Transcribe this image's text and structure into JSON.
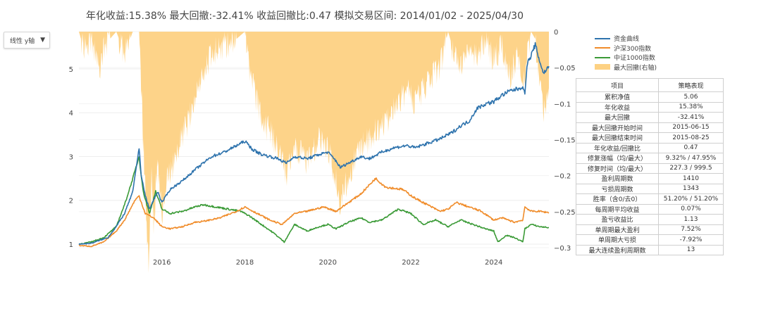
{
  "title": "年化收益:15.38%  最大回撤:-32.41%  收益回撤比:0.47  模拟交易区间: 2014/01/02 - 2025/04/30",
  "scale_dropdown": {
    "label": "线性 y轴",
    "arrow": "▼"
  },
  "colors": {
    "equity": "#2e73ad",
    "hs300": "#f08c2a",
    "zz1000": "#3a9a36",
    "drawdown": "#fdd183"
  },
  "legend": [
    "资金曲线",
    "沪深300指数",
    "中证1000指数",
    "最大回撤(右轴)"
  ],
  "stats_table": {
    "header": [
      "项目",
      "策略表现"
    ],
    "rows": [
      [
        "累积净值",
        "5.06"
      ],
      [
        "年化收益",
        "15.38%"
      ],
      [
        "最大回撤",
        "-32.41%"
      ],
      [
        "最大回撤开始时间",
        "2015-06-15"
      ],
      [
        "最大回撤结束时间",
        "2015-08-25"
      ],
      [
        "年化收益/回撤比",
        "0.47"
      ],
      [
        "修复涨幅（均/最大）",
        "9.32% / 47.95%"
      ],
      [
        "修复时间（均/最大）",
        "227.3 / 999.5"
      ],
      [
        "盈利周期数",
        "1410"
      ],
      [
        "亏损周期数",
        "1343"
      ],
      [
        "胜率（含0/去0）",
        "51.20% / 51.20%"
      ],
      [
        "每周期平均收益",
        "0.07%"
      ],
      [
        "盈亏收益比",
        "1.13"
      ],
      [
        "单周期最大盈利",
        "7.52%"
      ],
      [
        "单周期大亏损",
        "-7.92%"
      ],
      [
        "最大连续盈利周期数",
        "13"
      ]
    ]
  },
  "chart_data": {
    "type": "line",
    "x_range": [
      2014.0,
      2025.33
    ],
    "x_ticks": [
      2016,
      2018,
      2020,
      2022,
      2024
    ],
    "y_left": {
      "range": [
        0.92,
        5.85
      ],
      "ticks": [
        1,
        2,
        3,
        4,
        5
      ]
    },
    "y_right": {
      "range": [
        -0.3,
        0.0
      ],
      "ticks": [
        0,
        -0.05,
        -0.1,
        -0.15,
        -0.2,
        -0.25,
        -0.3
      ],
      "tick_labels": [
        "0",
        "−0.05",
        "−0.1",
        "−0.15",
        "−0.2",
        "−0.25",
        "−0.3"
      ]
    },
    "series": [
      {
        "name": "资金曲线",
        "axis": "left",
        "points": [
          [
            2014.0,
            1.0
          ],
          [
            2014.3,
            1.02
          ],
          [
            2014.7,
            1.15
          ],
          [
            2014.9,
            1.4
          ],
          [
            2015.1,
            1.7
          ],
          [
            2015.3,
            2.2
          ],
          [
            2015.45,
            3.2
          ],
          [
            2015.5,
            2.6
          ],
          [
            2015.6,
            2.1
          ],
          [
            2015.7,
            1.8
          ],
          [
            2015.9,
            2.2
          ],
          [
            2016.0,
            1.95
          ],
          [
            2016.2,
            2.25
          ],
          [
            2016.5,
            2.45
          ],
          [
            2016.8,
            2.7
          ],
          [
            2017.0,
            2.85
          ],
          [
            2017.2,
            3.0
          ],
          [
            2017.5,
            3.1
          ],
          [
            2017.8,
            3.25
          ],
          [
            2018.0,
            3.35
          ],
          [
            2018.2,
            3.15
          ],
          [
            2018.4,
            3.05
          ],
          [
            2018.6,
            3.0
          ],
          [
            2018.8,
            2.95
          ],
          [
            2019.0,
            2.85
          ],
          [
            2019.2,
            3.0
          ],
          [
            2019.5,
            2.95
          ],
          [
            2019.8,
            3.05
          ],
          [
            2020.0,
            3.1
          ],
          [
            2020.2,
            2.9
          ],
          [
            2020.3,
            2.75
          ],
          [
            2020.5,
            2.85
          ],
          [
            2020.8,
            3.0
          ],
          [
            2021.0,
            2.95
          ],
          [
            2021.3,
            3.1
          ],
          [
            2021.6,
            3.2
          ],
          [
            2021.9,
            3.25
          ],
          [
            2022.1,
            3.2
          ],
          [
            2022.4,
            3.3
          ],
          [
            2022.7,
            3.4
          ],
          [
            2023.0,
            3.55
          ],
          [
            2023.2,
            3.7
          ],
          [
            2023.4,
            3.8
          ],
          [
            2023.6,
            4.1
          ],
          [
            2023.8,
            4.2
          ],
          [
            2024.0,
            4.25
          ],
          [
            2024.2,
            4.4
          ],
          [
            2024.4,
            4.5
          ],
          [
            2024.6,
            4.55
          ],
          [
            2024.7,
            4.6
          ],
          [
            2024.75,
            4.4
          ],
          [
            2024.8,
            5.1
          ],
          [
            2024.9,
            5.3
          ],
          [
            2025.0,
            5.55
          ],
          [
            2025.1,
            5.2
          ],
          [
            2025.2,
            4.9
          ],
          [
            2025.33,
            5.06
          ]
        ]
      },
      {
        "name": "沪深300指数",
        "axis": "left",
        "points": [
          [
            2014.0,
            0.97
          ],
          [
            2014.3,
            0.95
          ],
          [
            2014.6,
            1.05
          ],
          [
            2014.9,
            1.3
          ],
          [
            2015.1,
            1.55
          ],
          [
            2015.35,
            2.0
          ],
          [
            2015.45,
            2.1
          ],
          [
            2015.6,
            1.7
          ],
          [
            2015.8,
            1.6
          ],
          [
            2016.0,
            1.4
          ],
          [
            2016.2,
            1.35
          ],
          [
            2016.5,
            1.4
          ],
          [
            2016.8,
            1.5
          ],
          [
            2017.0,
            1.52
          ],
          [
            2017.4,
            1.6
          ],
          [
            2017.8,
            1.75
          ],
          [
            2018.0,
            1.85
          ],
          [
            2018.3,
            1.7
          ],
          [
            2018.6,
            1.55
          ],
          [
            2018.9,
            1.45
          ],
          [
            2019.2,
            1.7
          ],
          [
            2019.5,
            1.75
          ],
          [
            2019.9,
            1.85
          ],
          [
            2020.2,
            1.75
          ],
          [
            2020.5,
            1.95
          ],
          [
            2020.8,
            2.15
          ],
          [
            2021.0,
            2.35
          ],
          [
            2021.15,
            2.5
          ],
          [
            2021.4,
            2.3
          ],
          [
            2021.8,
            2.25
          ],
          [
            2022.1,
            2.05
          ],
          [
            2022.4,
            1.9
          ],
          [
            2022.7,
            1.75
          ],
          [
            2022.9,
            1.8
          ],
          [
            2023.1,
            1.95
          ],
          [
            2023.4,
            1.85
          ],
          [
            2023.7,
            1.75
          ],
          [
            2024.0,
            1.55
          ],
          [
            2024.2,
            1.6
          ],
          [
            2024.5,
            1.5
          ],
          [
            2024.7,
            1.55
          ],
          [
            2024.75,
            1.85
          ],
          [
            2024.9,
            1.75
          ],
          [
            2025.1,
            1.75
          ],
          [
            2025.33,
            1.72
          ]
        ]
      },
      {
        "name": "中证1000指数",
        "axis": "left",
        "points": [
          [
            2014.0,
            1.0
          ],
          [
            2014.3,
            1.05
          ],
          [
            2014.6,
            1.15
          ],
          [
            2014.9,
            1.4
          ],
          [
            2015.1,
            1.9
          ],
          [
            2015.3,
            2.5
          ],
          [
            2015.45,
            3.0
          ],
          [
            2015.55,
            2.2
          ],
          [
            2015.7,
            1.7
          ],
          [
            2015.85,
            2.2
          ],
          [
            2016.0,
            1.8
          ],
          [
            2016.2,
            1.7
          ],
          [
            2016.5,
            1.75
          ],
          [
            2016.8,
            1.85
          ],
          [
            2017.0,
            1.9
          ],
          [
            2017.3,
            1.85
          ],
          [
            2017.6,
            1.8
          ],
          [
            2017.9,
            1.75
          ],
          [
            2018.1,
            1.65
          ],
          [
            2018.4,
            1.45
          ],
          [
            2018.7,
            1.25
          ],
          [
            2018.95,
            1.05
          ],
          [
            2019.2,
            1.45
          ],
          [
            2019.5,
            1.3
          ],
          [
            2019.8,
            1.4
          ],
          [
            2020.0,
            1.45
          ],
          [
            2020.2,
            1.35
          ],
          [
            2020.5,
            1.5
          ],
          [
            2020.8,
            1.6
          ],
          [
            2021.0,
            1.5
          ],
          [
            2021.3,
            1.55
          ],
          [
            2021.7,
            1.8
          ],
          [
            2022.0,
            1.7
          ],
          [
            2022.3,
            1.45
          ],
          [
            2022.6,
            1.55
          ],
          [
            2022.9,
            1.4
          ],
          [
            2023.2,
            1.55
          ],
          [
            2023.5,
            1.45
          ],
          [
            2023.8,
            1.35
          ],
          [
            2024.0,
            1.3
          ],
          [
            2024.1,
            1.05
          ],
          [
            2024.3,
            1.2
          ],
          [
            2024.5,
            1.15
          ],
          [
            2024.7,
            1.05
          ],
          [
            2024.75,
            1.35
          ],
          [
            2024.9,
            1.45
          ],
          [
            2025.1,
            1.4
          ],
          [
            2025.33,
            1.38
          ]
        ]
      },
      {
        "name": "最大回撤(右轴)",
        "axis": "right",
        "type": "area",
        "points": [
          [
            2014.0,
            0.0
          ],
          [
            2014.1,
            -0.02
          ],
          [
            2014.2,
            -0.03
          ],
          [
            2014.3,
            -0.01
          ],
          [
            2014.5,
            -0.05
          ],
          [
            2014.6,
            -0.02
          ],
          [
            2014.9,
            0.0
          ],
          [
            2015.1,
            -0.03
          ],
          [
            2015.3,
            -0.0
          ],
          [
            2015.45,
            0.0
          ],
          [
            2015.55,
            -0.15
          ],
          [
            2015.62,
            -0.25
          ],
          [
            2015.68,
            -0.324
          ],
          [
            2015.75,
            -0.2
          ],
          [
            2015.8,
            -0.27
          ],
          [
            2015.9,
            -0.18
          ],
          [
            2016.0,
            -0.26
          ],
          [
            2016.1,
            -0.21
          ],
          [
            2016.2,
            -0.2
          ],
          [
            2016.4,
            -0.16
          ],
          [
            2016.6,
            -0.13
          ],
          [
            2016.8,
            -0.09
          ],
          [
            2017.0,
            -0.06
          ],
          [
            2017.2,
            -0.03
          ],
          [
            2017.5,
            -0.02
          ],
          [
            2017.8,
            -0.01
          ],
          [
            2018.0,
            0.0
          ],
          [
            2018.1,
            -0.05
          ],
          [
            2018.3,
            -0.1
          ],
          [
            2018.5,
            -0.13
          ],
          [
            2018.8,
            -0.16
          ],
          [
            2019.0,
            -0.2
          ],
          [
            2019.2,
            -0.16
          ],
          [
            2019.5,
            -0.18
          ],
          [
            2019.8,
            -0.15
          ],
          [
            2020.0,
            -0.16
          ],
          [
            2020.2,
            -0.21
          ],
          [
            2020.3,
            -0.24
          ],
          [
            2020.5,
            -0.2
          ],
          [
            2020.8,
            -0.16
          ],
          [
            2021.0,
            -0.15
          ],
          [
            2021.3,
            -0.13
          ],
          [
            2021.6,
            -0.11
          ],
          [
            2021.9,
            -0.08
          ],
          [
            2022.1,
            -0.1
          ],
          [
            2022.4,
            -0.07
          ],
          [
            2022.7,
            -0.05
          ],
          [
            2022.9,
            0.0
          ],
          [
            2023.0,
            -0.02
          ],
          [
            2023.2,
            -0.05
          ],
          [
            2023.4,
            -0.02
          ],
          [
            2023.6,
            -0.04
          ],
          [
            2023.8,
            -0.01
          ],
          [
            2024.0,
            -0.04
          ],
          [
            2024.2,
            -0.02
          ],
          [
            2024.4,
            -0.06
          ],
          [
            2024.6,
            -0.03
          ],
          [
            2024.75,
            -0.08
          ],
          [
            2024.8,
            -0.03
          ],
          [
            2024.9,
            0.0
          ],
          [
            2025.0,
            -0.01
          ],
          [
            2025.1,
            -0.06
          ],
          [
            2025.2,
            -0.11
          ],
          [
            2025.33,
            -0.09
          ]
        ]
      }
    ]
  }
}
